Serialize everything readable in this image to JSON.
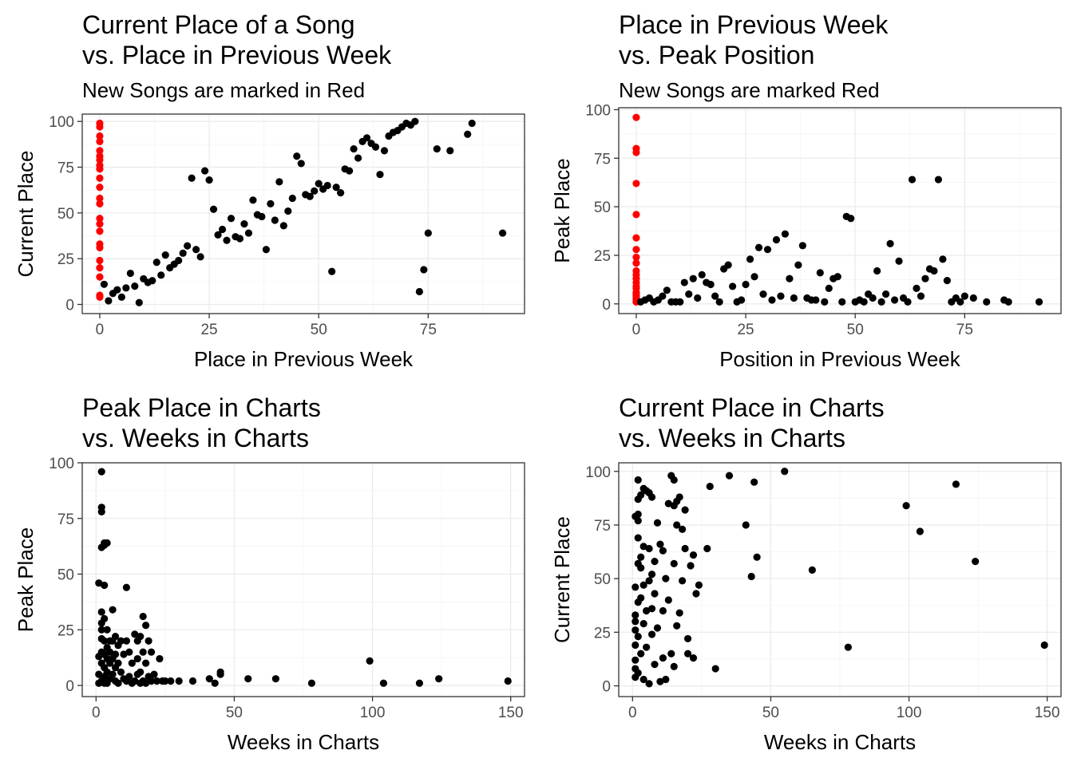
{
  "chart_data": [
    {
      "type": "scatter",
      "title": [
        "Current Place of a Song",
        "vs. Place in Previous Week"
      ],
      "subtitle": "New Songs are marked in Red",
      "xlabel": "Place in Previous Week",
      "ylabel": "Current Place",
      "xlim": [
        -4,
        97
      ],
      "ylim": [
        -5,
        104
      ],
      "xticks": [
        0,
        25,
        50,
        75
      ],
      "yticks": [
        0,
        25,
        50,
        75,
        100
      ],
      "grid": true,
      "colors": {
        "new": "#ff0000",
        "existing": "#000000"
      },
      "series": [
        {
          "color_key": "new",
          "x": [
            0,
            0,
            0,
            0,
            0,
            0,
            0,
            0,
            0,
            0,
            0,
            0,
            0,
            0,
            0,
            0,
            0,
            0,
            0,
            0,
            0,
            0,
            0
          ],
          "y": [
            99,
            97,
            92,
            89,
            84,
            81,
            79,
            76,
            74,
            69,
            64,
            58,
            55,
            47,
            44,
            40,
            33,
            31,
            24,
            20,
            15,
            5,
            4
          ]
        },
        {
          "color_key": "existing",
          "x": [
            1,
            2,
            3,
            4,
            5,
            6,
            7,
            8,
            9,
            10,
            11,
            12,
            13,
            14,
            15,
            16,
            17,
            18,
            19,
            20,
            21,
            22,
            23,
            24,
            25,
            26,
            27,
            28,
            29,
            30,
            31,
            32,
            33,
            34,
            35,
            36,
            37,
            38,
            39,
            40,
            41,
            42,
            43,
            44,
            45,
            46,
            47,
            48,
            49,
            50,
            51,
            52,
            53,
            54,
            55,
            56,
            57,
            58,
            59,
            60,
            61,
            62,
            63,
            64,
            65,
            66,
            67,
            68,
            69,
            70,
            71,
            72,
            73,
            74,
            75,
            77,
            80,
            84,
            85,
            92
          ],
          "y": [
            11,
            2,
            6,
            8,
            4,
            9,
            17,
            10,
            1,
            14,
            12,
            13,
            23,
            16,
            27,
            20,
            22,
            24,
            28,
            32,
            69,
            30,
            26,
            73,
            68,
            52,
            38,
            41,
            35,
            47,
            37,
            36,
            44,
            39,
            57,
            49,
            48,
            30,
            55,
            46,
            67,
            43,
            51,
            58,
            81,
            77,
            60,
            59,
            62,
            66,
            63,
            65,
            18,
            64,
            61,
            74,
            73,
            85,
            80,
            89,
            91,
            88,
            86,
            71,
            84,
            92,
            94,
            95,
            97,
            99,
            98,
            100,
            7,
            19,
            39,
            85,
            84,
            93,
            99,
            39
          ]
        }
      ]
    },
    {
      "type": "scatter",
      "title": [
        "Place in Previous Week",
        "vs. Peak Position"
      ],
      "subtitle": "New Songs are marked Red",
      "xlabel": "Position in Previous Week",
      "ylabel": "Peak Place",
      "xlim": [
        -4,
        97
      ],
      "ylim": [
        -5,
        101
      ],
      "xticks": [
        0,
        25,
        50,
        75
      ],
      "yticks": [
        0,
        25,
        50,
        75,
        100
      ],
      "grid": true,
      "colors": {
        "new": "#ff0000",
        "existing": "#000000"
      },
      "series": [
        {
          "color_key": "new",
          "x": [
            0,
            0,
            0,
            0,
            0,
            0,
            0,
            0,
            0,
            0,
            0,
            0,
            0,
            0,
            0,
            0,
            0,
            0,
            0,
            0,
            0,
            0
          ],
          "y": [
            96,
            80,
            78,
            62,
            46,
            34,
            28,
            24,
            21,
            17,
            15,
            13,
            11,
            9,
            8,
            6,
            5,
            4,
            3,
            2,
            1,
            1
          ]
        },
        {
          "color_key": "existing",
          "x": [
            1,
            2,
            3,
            4,
            5,
            6,
            7,
            8,
            9,
            10,
            11,
            12,
            13,
            14,
            15,
            16,
            17,
            18,
            19,
            20,
            21,
            22,
            23,
            24,
            25,
            26,
            27,
            28,
            29,
            30,
            31,
            32,
            33,
            34,
            35,
            36,
            37,
            38,
            39,
            40,
            41,
            42,
            43,
            44,
            45,
            46,
            47,
            48,
            49,
            50,
            51,
            52,
            53,
            54,
            55,
            56,
            57,
            58,
            59,
            60,
            61,
            62,
            63,
            64,
            65,
            66,
            67,
            68,
            69,
            70,
            71,
            72,
            73,
            74,
            75,
            77,
            80,
            84,
            85,
            92
          ],
          "y": [
            1,
            2,
            3,
            1,
            2,
            4,
            7,
            1,
            1,
            1,
            11,
            5,
            13,
            3,
            15,
            11,
            10,
            4,
            1,
            18,
            20,
            9,
            1,
            2,
            10,
            23,
            14,
            29,
            5,
            28,
            2,
            33,
            4,
            36,
            13,
            3,
            20,
            30,
            3,
            2,
            2,
            16,
            1,
            8,
            13,
            14,
            1,
            45,
            44,
            1,
            2,
            1,
            5,
            3,
            17,
            1,
            5,
            31,
            2,
            22,
            3,
            1,
            64,
            8,
            4,
            13,
            18,
            17,
            64,
            23,
            12,
            1,
            3,
            1,
            4,
            3,
            1,
            2,
            1,
            1
          ]
        }
      ]
    },
    {
      "type": "scatter",
      "title": [
        "Peak Place in Charts",
        "vs. Weeks in Charts"
      ],
      "xlabel": "Weeks in Charts",
      "ylabel": "Peak Place",
      "xlim": [
        -5,
        155
      ],
      "ylim": [
        -5,
        100
      ],
      "xticks": [
        0,
        50,
        100,
        150
      ],
      "yticks": [
        0,
        25,
        50,
        75,
        100
      ],
      "grid": true,
      "colors": {
        "existing": "#000000"
      },
      "series": [
        {
          "color_key": "existing",
          "x": [
            1,
            1,
            1,
            1,
            2,
            2,
            2,
            2,
            2,
            2,
            2,
            2,
            2,
            2,
            2,
            3,
            3,
            3,
            3,
            3,
            3,
            3,
            3,
            3,
            4,
            4,
            4,
            4,
            4,
            4,
            5,
            5,
            5,
            5,
            6,
            6,
            6,
            6,
            7,
            7,
            7,
            7,
            8,
            8,
            8,
            9,
            9,
            10,
            10,
            11,
            11,
            11,
            12,
            12,
            13,
            13,
            14,
            14,
            15,
            15,
            15,
            16,
            16,
            16,
            17,
            17,
            17,
            18,
            18,
            18,
            19,
            19,
            20,
            20,
            21,
            22,
            23,
            24,
            25,
            27,
            30,
            35,
            41,
            43,
            45,
            45,
            55,
            65,
            78,
            99,
            104,
            117,
            124,
            149
          ],
          "y": [
            1,
            5,
            13,
            46,
            96,
            80,
            78,
            62,
            33,
            28,
            25,
            21,
            15,
            10,
            2,
            64,
            63,
            45,
            30,
            20,
            14,
            8,
            4,
            1,
            64,
            25,
            17,
            12,
            6,
            1,
            20,
            15,
            10,
            3,
            34,
            20,
            12,
            5,
            22,
            14,
            8,
            2,
            18,
            10,
            1,
            20,
            6,
            14,
            3,
            44,
            20,
            2,
            15,
            4,
            10,
            1,
            23,
            2,
            20,
            12,
            5,
            22,
            6,
            1,
            31,
            15,
            2,
            27,
            10,
            1,
            20,
            4,
            15,
            2,
            5,
            2,
            12,
            2,
            2,
            2,
            2,
            2,
            3,
            1,
            5,
            6,
            3,
            3,
            1,
            11,
            1,
            1,
            3,
            2
          ]
        }
      ]
    },
    {
      "type": "scatter",
      "title": [
        "Current Place in Charts",
        "vs. Weeks in Charts"
      ],
      "xlabel": "Weeks in Charts",
      "ylabel": "Current Place",
      "xlim": [
        -5,
        155
      ],
      "ylim": [
        -5,
        104
      ],
      "xticks": [
        0,
        50,
        100,
        150
      ],
      "yticks": [
        0,
        25,
        50,
        75,
        100
      ],
      "grid": true,
      "colors": {
        "existing": "#000000"
      },
      "series": [
        {
          "color_key": "existing",
          "x": [
            1,
            1,
            1,
            1,
            1,
            1,
            1,
            1,
            1,
            2,
            2,
            2,
            2,
            2,
            2,
            2,
            2,
            2,
            3,
            3,
            3,
            3,
            3,
            4,
            4,
            4,
            4,
            4,
            5,
            5,
            5,
            6,
            6,
            6,
            6,
            7,
            7,
            7,
            7,
            8,
            8,
            8,
            9,
            9,
            10,
            10,
            11,
            11,
            11,
            12,
            12,
            13,
            13,
            14,
            14,
            15,
            15,
            15,
            15,
            16,
            16,
            16,
            17,
            17,
            18,
            18,
            19,
            19,
            20,
            20,
            21,
            22,
            22,
            23,
            24,
            27,
            28,
            30,
            35,
            41,
            43,
            44,
            45,
            55,
            65,
            78,
            99,
            104,
            117,
            124,
            149
          ],
          "y": [
            30,
            33,
            46,
            79,
            4,
            12,
            8,
            19,
            26,
            96,
            87,
            80,
            77,
            69,
            57,
            39,
            23,
            6,
            89,
            60,
            55,
            41,
            15,
            92,
            65,
            47,
            29,
            3,
            91,
            35,
            18,
            90,
            64,
            49,
            1,
            88,
            52,
            36,
            24,
            58,
            43,
            10,
            76,
            27,
            66,
            2,
            63,
            35,
            13,
            50,
            3,
            85,
            40,
            15,
            98,
            96,
            84,
            9,
            57,
            86,
            75,
            28,
            88,
            34,
            73,
            49,
            82,
            64,
            22,
            15,
            56,
            61,
            13,
            43,
            47,
            64,
            93,
            8,
            98,
            75,
            51,
            95,
            60,
            100,
            54,
            18,
            84,
            72,
            94,
            58,
            19
          ]
        }
      ]
    }
  ]
}
